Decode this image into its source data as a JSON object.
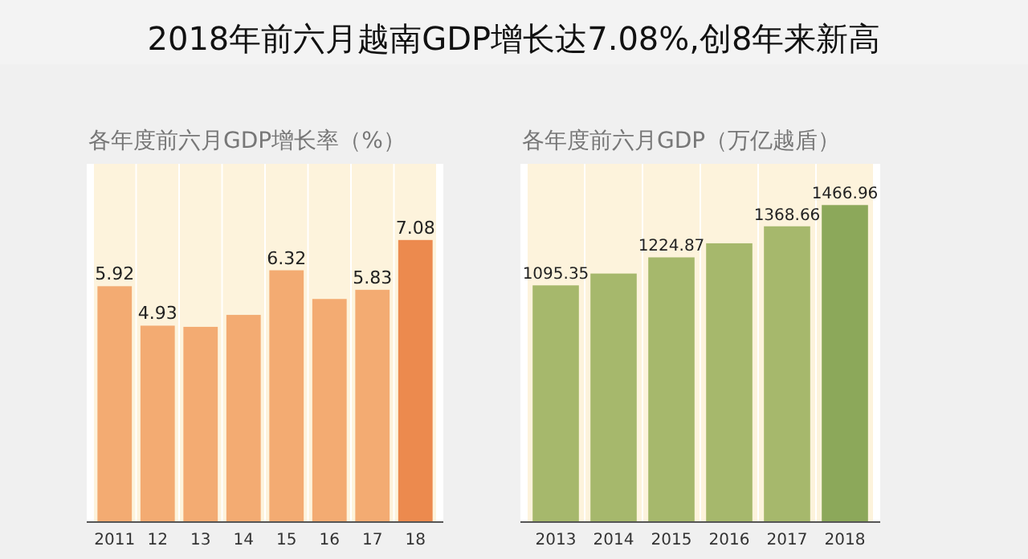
{
  "chart_data": [
    {
      "type": "bar",
      "title": "2018年前六月越南GDP增长达7.08%,创8年来新高",
      "subtitle": "各年度前六月GDP增长率（%）",
      "categories": [
        "2011",
        "12",
        "13",
        "14",
        "15",
        "16",
        "17",
        "18"
      ],
      "values": [
        5.92,
        4.93,
        4.9,
        5.2,
        6.32,
        5.6,
        5.83,
        7.08
      ],
      "value_labels": [
        "5.92",
        "4.93",
        null,
        null,
        "6.32",
        null,
        "5.83",
        "7.08"
      ],
      "colors": [
        "#f3ab72",
        "#f3ab72",
        "#f3ab72",
        "#f3ab72",
        "#f3ab72",
        "#f3ab72",
        "#f3ab72",
        "#ec8a4e"
      ]
    },
    {
      "type": "bar",
      "subtitle": "各年度前六月GDP（万亿越盾）",
      "categories": [
        "2013",
        "2014",
        "2015",
        "2016",
        "2017",
        "2018"
      ],
      "values": [
        1095.35,
        1150,
        1224.87,
        1290,
        1368.66,
        1466.96
      ],
      "value_labels": [
        "1095.35",
        null,
        "1224.87",
        null,
        "1368.66",
        "1466.96"
      ],
      "colors": [
        "#a6b86c",
        "#a6b86c",
        "#a6b86c",
        "#a6b86c",
        "#a6b86c",
        "#8ca85a"
      ]
    }
  ]
}
